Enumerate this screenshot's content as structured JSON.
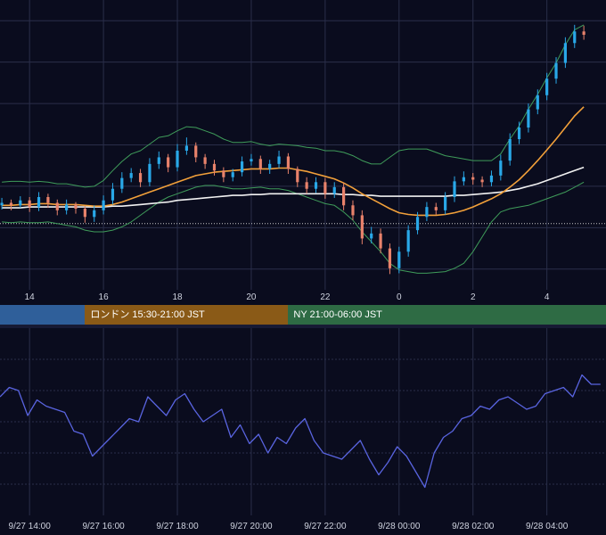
{
  "colors": {
    "background": "#0a0c1e",
    "grid": "#2a2e4a",
    "candle_up": "#29a8e8",
    "candle_down": "#e8826b",
    "bollinger": "#3f9c5a",
    "ma_fast": "#f2a03a",
    "ma_slow": "#f2f2f2",
    "rsi_line": "#5964e0",
    "dotted_level": "#c8c8c8",
    "session_tokyo": "#2f5f9a",
    "session_london": "#8a5a17",
    "session_ny": "#2e6b44"
  },
  "axis_top": {
    "ticks": [
      "14",
      "16",
      "18",
      "20",
      "22",
      "0",
      "2",
      "4"
    ]
  },
  "sessions": [
    {
      "id": "tokyo",
      "label": "",
      "color": "#2f5f9a"
    },
    {
      "id": "london",
      "label": "ロンドン 15:30-21:00 JST",
      "color": "#8a5a17"
    },
    {
      "id": "ny",
      "label": "NY 21:00-06:00 JST",
      "color": "#2e6b44"
    }
  ],
  "axis_bottom": {
    "ticks": [
      "9/27 14:00",
      "9/27 16:00",
      "9/27 18:00",
      "9/27 20:00",
      "9/27 22:00",
      "9/28 00:00",
      "9/28 02:00",
      "9/28 04:00"
    ]
  },
  "chart_data": [
    {
      "type": "candlestick",
      "title": "",
      "x_hours_jst": [
        13.25,
        13.5,
        13.75,
        14.0,
        14.25,
        14.5,
        14.75,
        15.0,
        15.25,
        15.5,
        15.75,
        16.0,
        16.25,
        16.5,
        16.75,
        17.0,
        17.25,
        17.5,
        17.75,
        18.0,
        18.25,
        18.5,
        18.75,
        19.0,
        19.25,
        19.5,
        19.75,
        20.0,
        20.25,
        20.5,
        20.75,
        21.0,
        21.25,
        21.5,
        21.75,
        22.0,
        22.25,
        22.5,
        22.75,
        23.0,
        23.25,
        23.5,
        23.75,
        24.0,
        24.25,
        24.5,
        24.75,
        25.0,
        25.25,
        25.5,
        25.75,
        26.0,
        26.25,
        26.5,
        26.75,
        27.0,
        27.25,
        27.5,
        27.75,
        28.0,
        28.25,
        28.5,
        28.75,
        29.0
      ],
      "close": [
        45.5,
        45.2,
        45.8,
        45.0,
        46.2,
        45.5,
        44.6,
        45.3,
        44.8,
        43.8,
        44.6,
        45.8,
        47.2,
        48.5,
        49.1,
        48.0,
        50.2,
        51.0,
        49.8,
        51.8,
        52.4,
        51.0,
        50.2,
        49.4,
        48.6,
        49.2,
        50.5,
        50.8,
        49.6,
        50.2,
        51.1,
        49.6,
        48.0,
        47.2,
        48.0,
        46.6,
        47.4,
        45.2,
        44.0,
        41.2,
        41.8,
        40.0,
        37.6,
        39.6,
        42.2,
        43.8,
        45.0,
        44.6,
        46.2,
        48.1,
        48.6,
        48.3,
        48.0,
        48.8,
        50.6,
        53.2,
        54.6,
        56.8,
        58.5,
        60.5,
        62.4,
        64.8,
        66.2,
        65.8
      ],
      "open": [
        45.2,
        45.5,
        45.2,
        45.8,
        45.0,
        46.2,
        45.5,
        44.6,
        45.3,
        44.8,
        43.8,
        44.6,
        45.8,
        47.2,
        48.5,
        49.1,
        48.0,
        50.2,
        51.0,
        49.8,
        51.8,
        52.4,
        51.0,
        50.2,
        49.4,
        48.6,
        49.2,
        50.5,
        50.8,
        49.6,
        50.2,
        51.1,
        49.6,
        48.0,
        47.2,
        48.0,
        46.6,
        47.4,
        45.2,
        44.0,
        41.2,
        41.8,
        40.0,
        37.6,
        39.6,
        42.2,
        43.8,
        45.0,
        44.6,
        46.2,
        48.1,
        48.6,
        48.3,
        48.0,
        48.8,
        50.6,
        53.2,
        54.6,
        56.8,
        58.5,
        60.5,
        62.4,
        64.8,
        66.2
      ],
      "high": [
        46.1,
        45.9,
        46.3,
        46.2,
        46.8,
        46.6,
        45.9,
        45.9,
        45.6,
        45.1,
        45.2,
        46.4,
        47.9,
        49.2,
        49.7,
        49.6,
        50.9,
        51.7,
        51.4,
        52.6,
        53.4,
        52.8,
        51.4,
        50.7,
        49.8,
        49.6,
        51.1,
        51.4,
        51.2,
        50.7,
        51.8,
        51.5,
        49.9,
        48.6,
        48.6,
        48.5,
        48.0,
        47.9,
        45.8,
        44.6,
        42.6,
        42.4,
        40.6,
        40.2,
        42.8,
        44.4,
        45.6,
        45.5,
        46.8,
        48.7,
        49.3,
        49.1,
        48.7,
        49.4,
        51.3,
        53.9,
        55.3,
        57.5,
        59.2,
        61.2,
        63.1,
        65.5,
        67.0,
        66.9
      ],
      "low": [
        44.7,
        44.6,
        44.9,
        44.4,
        44.5,
        44.9,
        44.0,
        44.1,
        44.2,
        43.1,
        43.2,
        44.1,
        45.3,
        46.7,
        48.0,
        47.4,
        47.5,
        49.6,
        49.2,
        49.3,
        51.3,
        50.4,
        49.6,
        48.8,
        48.0,
        48.1,
        48.7,
        50.0,
        49.0,
        49.0,
        49.7,
        49.0,
        47.4,
        46.6,
        46.7,
        46.0,
        46.1,
        44.6,
        43.4,
        40.5,
        40.6,
        39.4,
        36.9,
        37.0,
        39.0,
        41.7,
        43.3,
        44.1,
        44.1,
        45.6,
        47.6,
        47.7,
        47.4,
        47.5,
        48.2,
        50.0,
        52.6,
        54.0,
        56.2,
        57.9,
        59.9,
        61.8,
        64.2,
        65.2
      ],
      "bollinger_upper": [
        48.0,
        48.1,
        48.1,
        48.0,
        48.1,
        48.0,
        47.8,
        47.8,
        47.6,
        47.4,
        47.5,
        48.2,
        49.4,
        50.5,
        51.4,
        51.8,
        52.6,
        53.4,
        53.6,
        54.2,
        54.7,
        54.6,
        54.2,
        53.8,
        53.2,
        52.8,
        52.8,
        52.9,
        52.6,
        52.4,
        52.6,
        52.5,
        52.4,
        52.2,
        52.1,
        51.8,
        51.8,
        51.6,
        51.2,
        50.6,
        50.2,
        50.2,
        51.0,
        51.8,
        52.0,
        52.0,
        52.0,
        51.6,
        51.2,
        51.0,
        50.8,
        50.6,
        50.6,
        50.6,
        51.4,
        53.2,
        54.8,
        56.8,
        58.6,
        60.6,
        62.4,
        64.6,
        66.4,
        67.0
      ],
      "bollinger_lower": [
        43.2,
        43.1,
        43.2,
        43.1,
        43.1,
        43.2,
        43.0,
        42.8,
        42.6,
        42.2,
        42.0,
        42.0,
        42.2,
        42.6,
        43.2,
        44.0,
        44.8,
        45.6,
        46.2,
        46.6,
        47.0,
        47.4,
        47.6,
        47.6,
        47.4,
        47.2,
        47.2,
        47.3,
        47.4,
        47.2,
        47.2,
        47.0,
        46.6,
        46.2,
        45.8,
        45.4,
        45.2,
        44.4,
        43.4,
        42.0,
        40.8,
        39.6,
        38.2,
        37.4,
        37.2,
        37.0,
        37.0,
        37.1,
        37.2,
        37.6,
        38.2,
        39.6,
        41.4,
        43.2,
        44.4,
        44.8,
        45.0,
        45.2,
        45.6,
        46.0,
        46.4,
        46.8,
        47.4,
        48.0
      ],
      "ma_fast": [
        45.2,
        45.2,
        45.3,
        45.3,
        45.4,
        45.4,
        45.3,
        45.3,
        45.3,
        45.2,
        45.1,
        45.1,
        45.3,
        45.6,
        46.0,
        46.4,
        46.8,
        47.2,
        47.6,
        48.0,
        48.4,
        48.8,
        49.0,
        49.2,
        49.3,
        49.4,
        49.5,
        49.6,
        49.6,
        49.6,
        49.7,
        49.7,
        49.5,
        49.3,
        49.0,
        48.7,
        48.4,
        47.9,
        47.3,
        46.6,
        46.0,
        45.4,
        44.8,
        44.3,
        44.1,
        44.0,
        44.0,
        44.0,
        44.1,
        44.3,
        44.6,
        45.0,
        45.5,
        46.0,
        46.6,
        47.4,
        48.3,
        49.4,
        50.6,
        51.9,
        53.2,
        54.6,
        56.0,
        57.1
      ],
      "ma_slow": [
        44.9,
        44.9,
        44.9,
        45.0,
        45.0,
        45.0,
        45.0,
        45.0,
        45.0,
        45.0,
        45.0,
        45.0,
        45.1,
        45.1,
        45.2,
        45.3,
        45.4,
        45.5,
        45.6,
        45.8,
        45.9,
        46.0,
        46.1,
        46.2,
        46.3,
        46.4,
        46.4,
        46.5,
        46.5,
        46.6,
        46.6,
        46.6,
        46.6,
        46.6,
        46.6,
        46.6,
        46.6,
        46.5,
        46.5,
        46.4,
        46.4,
        46.3,
        46.3,
        46.3,
        46.3,
        46.3,
        46.3,
        46.3,
        46.3,
        46.4,
        46.4,
        46.5,
        46.6,
        46.7,
        46.8,
        47.0,
        47.2,
        47.5,
        47.8,
        48.2,
        48.6,
        49.0,
        49.4,
        49.8
      ],
      "dotted_level": 43.0,
      "ylim": [
        35,
        70
      ],
      "xlim_hours_jst": [
        13.2,
        29.6
      ]
    },
    {
      "type": "line",
      "title": "",
      "x_hours_jst": [
        13.2,
        13.45,
        13.7,
        13.95,
        14.2,
        14.45,
        14.7,
        14.95,
        15.2,
        15.45,
        15.7,
        15.95,
        16.2,
        16.45,
        16.7,
        16.95,
        17.2,
        17.45,
        17.7,
        17.95,
        18.2,
        18.45,
        18.7,
        18.95,
        19.2,
        19.45,
        19.7,
        19.95,
        20.2,
        20.45,
        20.7,
        20.95,
        21.2,
        21.45,
        21.7,
        21.95,
        22.2,
        22.45,
        22.7,
        22.95,
        23.2,
        23.45,
        23.7,
        23.95,
        24.2,
        24.45,
        24.7,
        24.95,
        25.2,
        25.45,
        25.7,
        25.95,
        26.2,
        26.45,
        26.7,
        26.95,
        27.2,
        27.45,
        27.7,
        27.95,
        28.2,
        28.45,
        28.7,
        28.95,
        29.2,
        29.45
      ],
      "values": [
        58,
        61,
        60,
        52,
        57,
        55,
        54,
        53,
        47,
        46,
        39,
        42,
        45,
        48,
        51,
        50,
        58,
        55,
        52,
        57,
        59,
        54,
        50,
        52,
        54,
        45,
        49,
        43,
        46,
        40,
        45,
        43,
        48,
        51,
        44,
        40,
        39,
        38,
        41,
        44,
        38,
        33,
        37,
        42,
        39,
        34,
        29,
        40,
        45,
        47,
        51,
        52,
        55,
        54,
        57,
        58,
        56,
        54,
        55,
        59,
        60,
        61,
        58,
        65,
        62,
        62
      ],
      "ylim": [
        20,
        80
      ]
    }
  ]
}
